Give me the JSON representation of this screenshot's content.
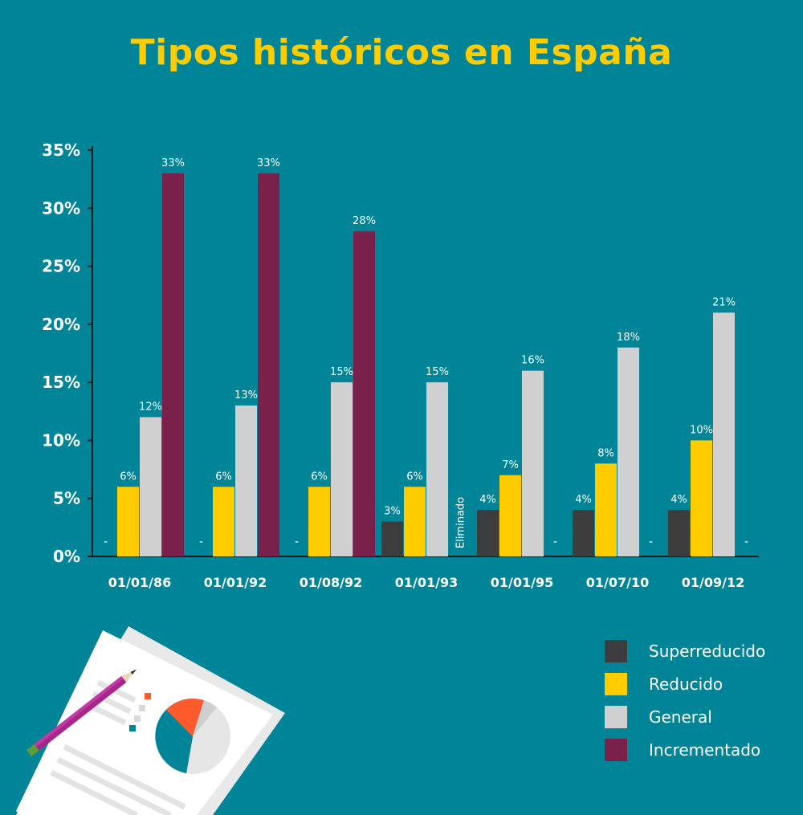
{
  "colors": {
    "background": "#008497",
    "title": "#FFCC00",
    "superreducido": "#3D3D3D",
    "reducido": "#FFCC00",
    "general": "#D0D0D0",
    "incrementado": "#79204B"
  },
  "chart_data": {
    "type": "bar",
    "title": "Tipos históricos en España",
    "xlabel": "",
    "ylabel": "",
    "ylim": [
      0,
      35
    ],
    "yticks": [
      "0%",
      "5%",
      "10%",
      "15%",
      "20%",
      "25%",
      "30%",
      "35%"
    ],
    "categories": [
      "01/01/86",
      "01/01/92",
      "01/08/92",
      "01/01/93",
      "01/01/95",
      "01/07/10",
      "01/09/12"
    ],
    "series": [
      {
        "name": "Superreducido",
        "color": "#3D3D3D",
        "values": [
          null,
          null,
          null,
          3,
          4,
          4,
          4
        ],
        "labels": [
          "-",
          "-",
          "-",
          "3%",
          "4%",
          "4%",
          "4%"
        ]
      },
      {
        "name": "Reducido",
        "color": "#FFCC00",
        "values": [
          6,
          6,
          6,
          6,
          7,
          8,
          10
        ],
        "labels": [
          "6%",
          "6%",
          "6%",
          "6%",
          "7%",
          "8%",
          "10%"
        ]
      },
      {
        "name": "General",
        "color": "#D0D0D0",
        "values": [
          12,
          13,
          15,
          15,
          16,
          18,
          21
        ],
        "labels": [
          "12%",
          "13%",
          "15%",
          "15%",
          "16%",
          "18%",
          "21%"
        ]
      },
      {
        "name": "Incrementado",
        "color": "#79204B",
        "values": [
          33,
          33,
          28,
          null,
          null,
          null,
          null
        ],
        "labels": [
          "33%",
          "33%",
          "28%",
          "Eliminado",
          "-",
          "-",
          "-"
        ]
      }
    ],
    "grid": false,
    "legend_position": "bottom-right"
  },
  "legend": [
    {
      "label": "Superreducido",
      "color": "#3D3D3D"
    },
    {
      "label": "Reducido",
      "color": "#FFCC00"
    },
    {
      "label": "General",
      "color": "#D0D0D0"
    },
    {
      "label": "Incrementado",
      "color": "#79204B"
    }
  ],
  "illustration": {
    "icon": "document-pie-chart-pencil-icon"
  }
}
